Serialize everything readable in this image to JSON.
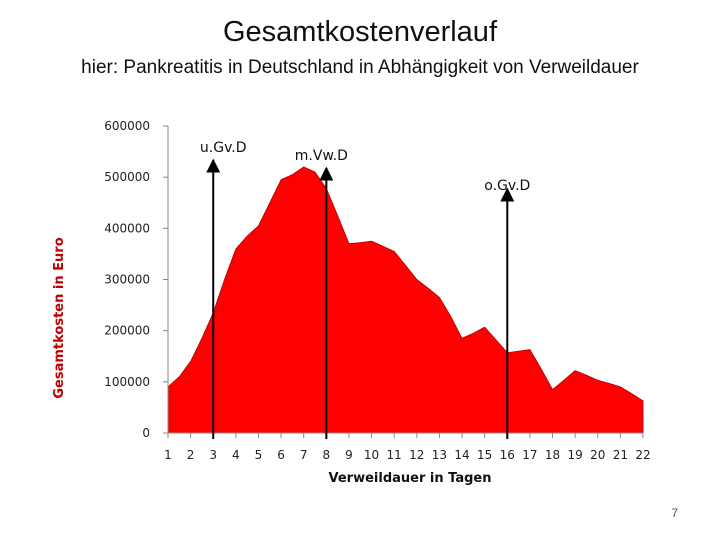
{
  "slide": {
    "title": "Gesamtkostenverlauf",
    "subtitle": "hier: Pankreatitis in Deutschland in Abhängigkeit von Verweildauer",
    "page_number": "7"
  },
  "chart_data": {
    "type": "area",
    "xlabel": "Verweildauer in Tagen",
    "ylabel": "Gesamtkosten in Euro",
    "categories": [
      "1",
      "2",
      "3",
      "4",
      "5",
      "6",
      "7",
      "8",
      "9",
      "10",
      "11",
      "12",
      "13",
      "14",
      "15",
      "16",
      "17",
      "18",
      "19",
      "20",
      "21",
      "22"
    ],
    "x": [
      1,
      1.5,
      2,
      2.5,
      3,
      3.5,
      4,
      4.5,
      5,
      5.5,
      6,
      6.5,
      7,
      7.5,
      8,
      8.5,
      9,
      9.5,
      10,
      10.5,
      11,
      11.5,
      12,
      12.5,
      13,
      13.5,
      14,
      14.5,
      15,
      15.5,
      16,
      16.5,
      17,
      17.5,
      18,
      18.5,
      19,
      19.5,
      20,
      20.5,
      21,
      21.5,
      22
    ],
    "values": [
      90000,
      110000,
      140000,
      185000,
      235000,
      300000,
      360000,
      385000,
      405000,
      450000,
      495000,
      505000,
      520000,
      510000,
      478000,
      425000,
      370000,
      372000,
      375000,
      365000,
      355000,
      328000,
      300000,
      283000,
      265000,
      228000,
      185000,
      195000,
      207000,
      182000,
      157000,
      160000,
      163000,
      125000,
      85000,
      103000,
      122000,
      113000,
      103000,
      97000,
      90000,
      77000,
      63000
    ],
    "ylim": [
      0,
      600000
    ],
    "yticks": [
      0,
      100000,
      200000,
      300000,
      400000,
      500000,
      600000
    ],
    "fill_color": "#ff0000",
    "grid": false,
    "markers": [
      {
        "label": "u.Gv.D",
        "x": 3
      },
      {
        "label": "m.Vw.D",
        "x": 8
      },
      {
        "label": "o.Gv.D",
        "x": 16
      }
    ]
  }
}
